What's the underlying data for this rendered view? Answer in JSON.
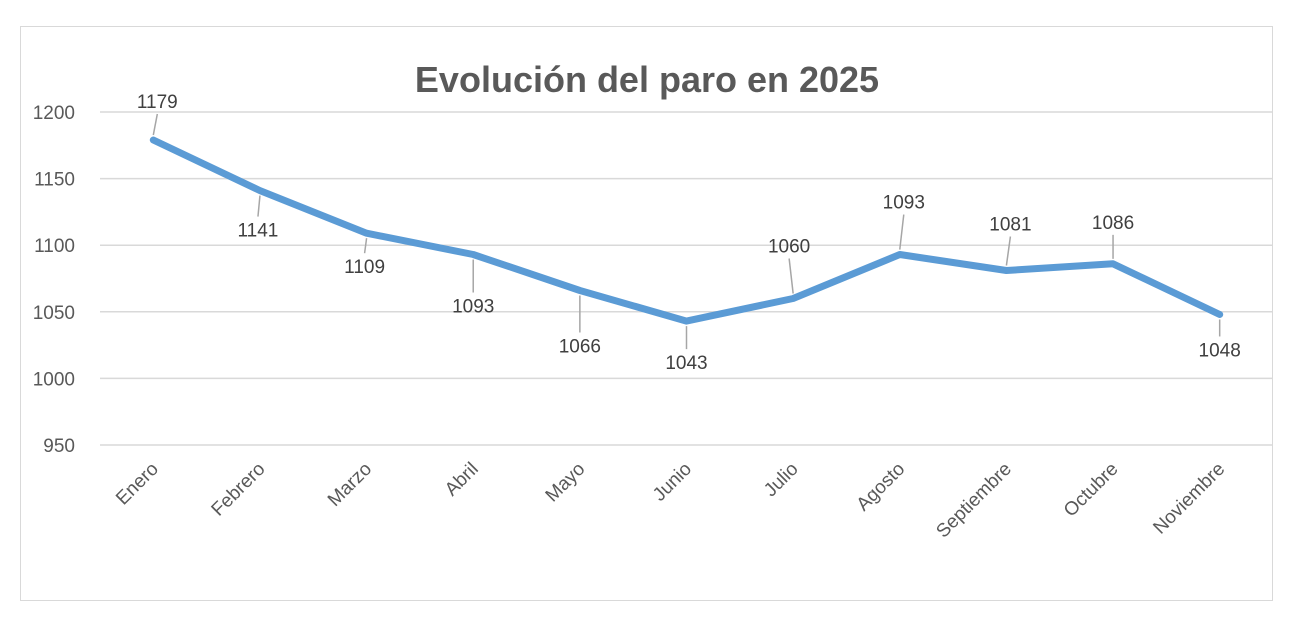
{
  "chart_data": {
    "type": "line",
    "title": "Evolución del paro en 2025",
    "categories": [
      "Enero",
      "Febrero",
      "Marzo",
      "Abril",
      "Mayo",
      "Junio",
      "Julio",
      "Agosto",
      "Septiembre",
      "Octubre",
      "Noviembre"
    ],
    "series": [
      {
        "values": [
          1179,
          1141,
          1109,
          1093,
          1066,
          1043,
          1060,
          1093,
          1081,
          1086,
          1048
        ]
      }
    ],
    "data_labels": [
      "1179",
      "1141",
      "1109",
      "1093",
      "1066",
      "1043",
      "1060",
      "1093",
      "1081",
      "1086",
      "1048"
    ],
    "yticks": [
      "950",
      "1000",
      "1050",
      "1100",
      "1150",
      "1200"
    ],
    "ylim": [
      950,
      1200
    ],
    "grid": true,
    "legend": "none",
    "xlabel": "",
    "ylabel": "",
    "colors": {
      "line": "#5b9bd5",
      "grid": "#d9d9d9",
      "text": "#595959"
    }
  }
}
